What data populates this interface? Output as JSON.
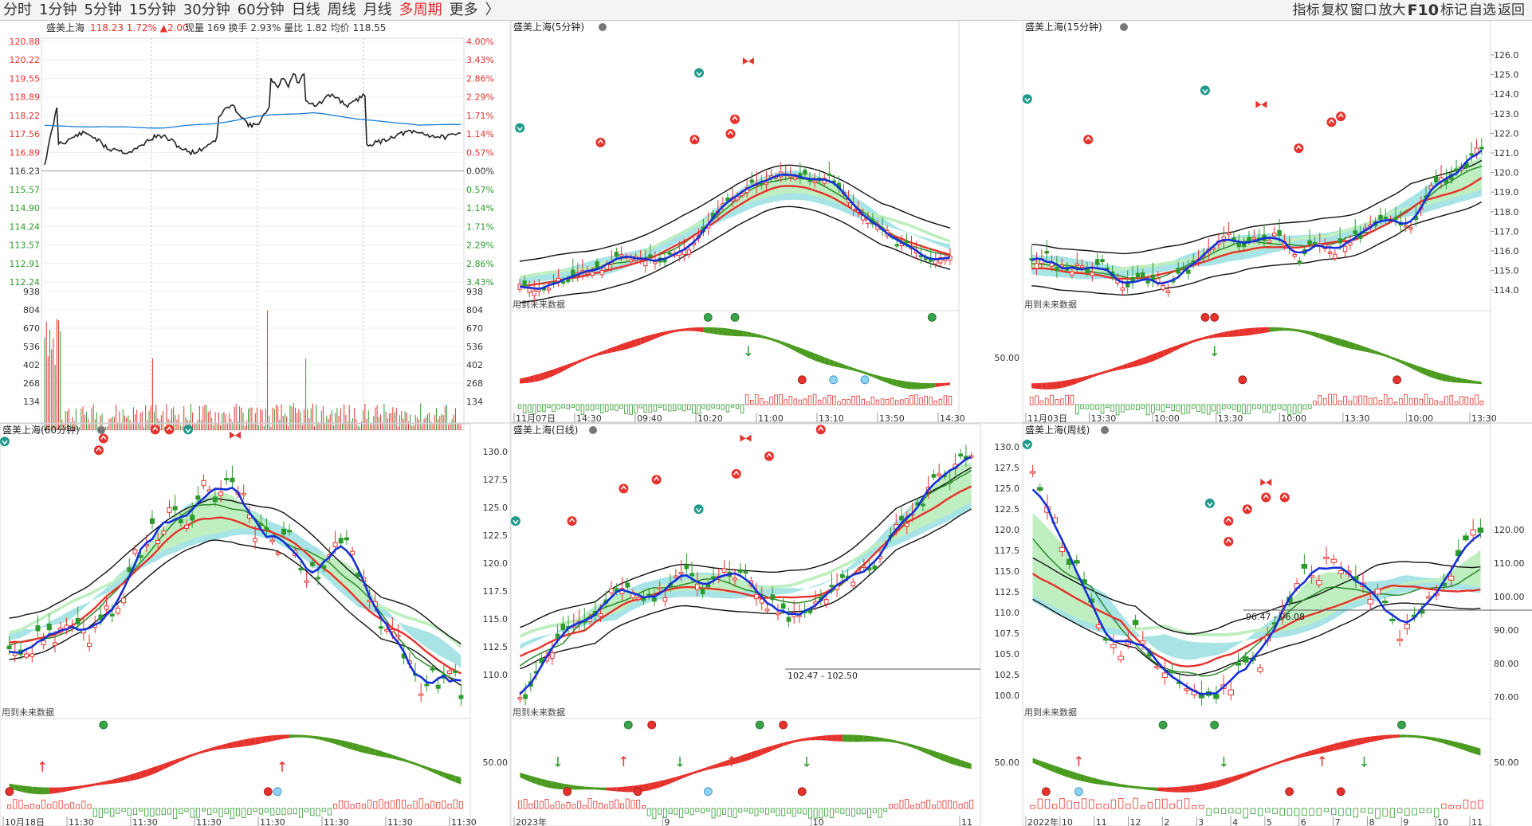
{
  "toolbar": {
    "tabs": [
      "分时",
      "1分钟",
      "5分钟",
      "15分钟",
      "30分钟",
      "60分钟",
      "日线",
      "周线",
      "月线",
      "多周期",
      "更多",
      "〉"
    ],
    "active_tab": "多周期",
    "right_tools": [
      "指标",
      "复权",
      "窗口",
      "放大",
      "F10",
      "标记",
      "自选",
      "返回"
    ]
  },
  "colors": {
    "up": "#e6322c",
    "down": "#2d9a2d",
    "avg": "#1a7fd6",
    "price": "#222222",
    "bg": "#ffffff",
    "grid": "#d8d8d8"
  },
  "intraday": {
    "title": "盛美上海",
    "quote": "118.23 1.72% ▲2.00",
    "stats": "现量 169 换手 2.93% 量比 1.82 均价 118.55",
    "price_ticks": [
      "120.88",
      "120.22",
      "119.55",
      "118.89",
      "118.22",
      "117.56",
      "116.89",
      "116.23",
      "115.57",
      "114.90",
      "114.24",
      "113.57",
      "112.91",
      "112.24"
    ],
    "pct_ticks": [
      "4.00%",
      "3.43%",
      "2.86%",
      "2.29%",
      "1.71%",
      "1.14%",
      "0.57%",
      "0.00%",
      "0.57%",
      "1.14%",
      "1.71%",
      "2.29%",
      "2.86%",
      "3.43%"
    ],
    "volume_ticks": [
      "938",
      "804",
      "670",
      "536",
      "402",
      "268",
      "134"
    ]
  },
  "panels": {
    "m5": {
      "title": "盛美上海(5分钟)",
      "note": "用到未来数据",
      "x_labels": [
        "11月07日",
        "14:30",
        "09:40",
        "10:20",
        "11:00",
        "13:10",
        "13:50",
        "14:30"
      ]
    },
    "m15": {
      "title": "盛美上海(15分钟)",
      "note": "用到未来数据",
      "y_ticks": [
        "126.0",
        "125.0",
        "124.0",
        "123.0",
        "122.0",
        "121.0",
        "120.0",
        "119.0",
        "118.0",
        "117.0",
        "116.0",
        "115.0",
        "114.0"
      ],
      "x_labels": [
        "11月03日",
        "13:30",
        "10:00",
        "13:30",
        "10:00",
        "13:30",
        "10:00",
        "13:30"
      ],
      "osc_tick": "50.00"
    },
    "m60": {
      "title": "盛美上海(60分钟)",
      "note": "用到未来数据",
      "x_labels": [
        "10月18日",
        "11:30",
        "11:30",
        "11:30",
        "11:30",
        "11:30",
        "11:30",
        "11:30"
      ]
    },
    "daily": {
      "title": "盛美上海(日线)",
      "note": "用到未来数据",
      "y_ticks": [
        "130.0",
        "127.5",
        "125.0",
        "122.5",
        "120.0",
        "117.5",
        "115.0",
        "112.5",
        "110.0"
      ],
      "x_labels": [
        "2023年",
        "9",
        "10",
        "11"
      ],
      "range_label": "102.47 - 102.50",
      "osc_tick": "50.00"
    },
    "weekly": {
      "title": "盛美上海(周线)",
      "note": "用到未来数据",
      "y_ticks": [
        "130.0",
        "127.5",
        "125.0",
        "122.5",
        "120.0",
        "117.5",
        "115.0",
        "112.5",
        "110.0",
        "107.5",
        "105.0",
        "102.5",
        "100.0"
      ],
      "right_ticks": [
        "120.00",
        "110.00",
        "100.00",
        "90.00",
        "80.00",
        "70.00"
      ],
      "x_labels": [
        "2022年",
        "10",
        "11",
        "12",
        "2",
        "3",
        "4",
        "5",
        "6",
        "7",
        "8",
        "9",
        "10",
        "11"
      ],
      "range_label": "96.47 - 96.08",
      "osc_tick": "50.00",
      "osc_tick_right": "50.00"
    }
  }
}
